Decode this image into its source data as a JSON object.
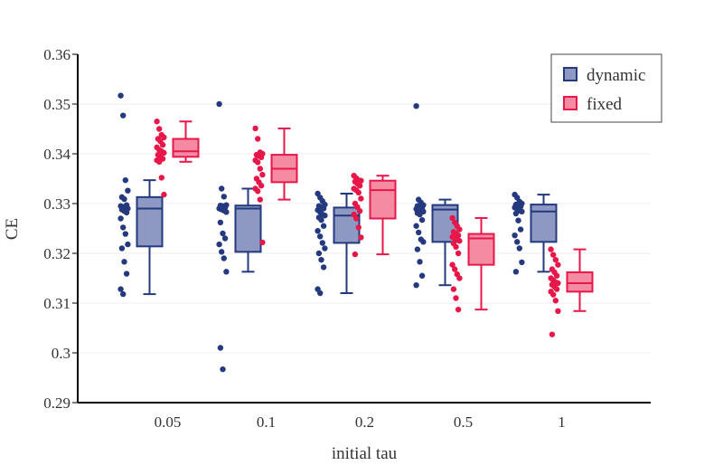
{
  "chart_data": {
    "type": "box",
    "title": "",
    "xlabel": "initial tau",
    "ylabel": "CE",
    "categories": [
      "0.05",
      "0.1",
      "0.2",
      "0.5",
      "1"
    ],
    "ylim": [
      0.29,
      0.36
    ],
    "yticks": [
      0.29,
      0.3,
      0.31,
      0.32,
      0.33,
      0.34,
      0.35,
      0.36
    ],
    "ytick_labels": [
      "0.29",
      "0.3",
      "0.31",
      "0.32",
      "0.33",
      "0.34",
      "0.35",
      "0.36"
    ],
    "grid": true,
    "legend_position": "top-right",
    "series": [
      {
        "name": "dynamic",
        "color": "#24397e",
        "fill": "#8d99c2",
        "boxes": [
          {
            "category": "0.05",
            "min": 0.3118,
            "q1": 0.3214,
            "median": 0.329,
            "q3": 0.3313,
            "max": 0.3347,
            "points": [
              0.3517,
              0.3477,
              0.3347,
              0.3326,
              0.3313,
              0.3309,
              0.3297,
              0.3295,
              0.3293,
              0.3291,
              0.329,
              0.3288,
              0.3285,
              0.3282,
              0.327,
              0.3252,
              0.3239,
              0.3218,
              0.321,
              0.3183,
              0.3159,
              0.3128,
              0.3118
            ]
          },
          {
            "category": "0.1",
            "min": 0.3163,
            "q1": 0.3203,
            "median": 0.329,
            "q3": 0.3296,
            "max": 0.333,
            "points": [
              0.35,
              0.333,
              0.3314,
              0.3297,
              0.3296,
              0.3295,
              0.3292,
              0.329,
              0.3288,
              0.3286,
              0.3283,
              0.3262,
              0.324,
              0.323,
              0.3218,
              0.3203,
              0.319,
              0.3163,
              0.301,
              0.2967
            ]
          },
          {
            "category": "0.2",
            "min": 0.312,
            "q1": 0.3221,
            "median": 0.3276,
            "q3": 0.3292,
            "max": 0.332,
            "points": [
              0.332,
              0.3312,
              0.3305,
              0.3298,
              0.3295,
              0.3293,
              0.329,
              0.3287,
              0.3283,
              0.3278,
              0.3276,
              0.3272,
              0.3267,
              0.3255,
              0.3245,
              0.3234,
              0.3221,
              0.321,
              0.32,
              0.3187,
              0.3172,
              0.3128,
              0.312
            ]
          },
          {
            "category": "0.5",
            "min": 0.3136,
            "q1": 0.3223,
            "median": 0.3288,
            "q3": 0.3297,
            "max": 0.3308,
            "points": [
              0.3496,
              0.3308,
              0.3302,
              0.3297,
              0.3295,
              0.3293,
              0.3291,
              0.3289,
              0.3288,
              0.3286,
              0.3284,
              0.3281,
              0.3278,
              0.3267,
              0.3255,
              0.3242,
              0.3228,
              0.3223,
              0.3208,
              0.3183,
              0.3155,
              0.3136
            ]
          },
          {
            "category": "1",
            "min": 0.3163,
            "q1": 0.3223,
            "median": 0.3284,
            "q3": 0.3298,
            "max": 0.3318,
            "points": [
              0.3318,
              0.3312,
              0.3304,
              0.33,
              0.3298,
              0.3296,
              0.3294,
              0.3292,
              0.3289,
              0.3286,
              0.3284,
              0.328,
              0.3266,
              0.3248,
              0.3236,
              0.3223,
              0.321,
              0.3182,
              0.3163
            ]
          }
        ]
      },
      {
        "name": "fixed",
        "color": "#e8174a",
        "fill": "#f58ba3",
        "boxes": [
          {
            "category": "0.05",
            "min": 0.3384,
            "q1": 0.3394,
            "median": 0.3405,
            "q3": 0.343,
            "max": 0.3465,
            "points": [
              0.3465,
              0.345,
              0.3438,
              0.3433,
              0.343,
              0.3425,
              0.3418,
              0.3413,
              0.3408,
              0.3405,
              0.3402,
              0.3398,
              0.3394,
              0.339,
              0.3387,
              0.3384,
              0.3352,
              0.3318
            ]
          },
          {
            "category": "0.1",
            "min": 0.3308,
            "q1": 0.3343,
            "median": 0.337,
            "q3": 0.3398,
            "max": 0.3451,
            "points": [
              0.3451,
              0.343,
              0.3403,
              0.34,
              0.3398,
              0.3396,
              0.3393,
              0.3387,
              0.3383,
              0.337,
              0.3358,
              0.335,
              0.3343,
              0.3336,
              0.333,
              0.3325,
              0.3308,
              0.3222
            ]
          },
          {
            "category": "0.2",
            "min": 0.3198,
            "q1": 0.327,
            "median": 0.3327,
            "q3": 0.3346,
            "max": 0.3356,
            "points": [
              0.3356,
              0.3351,
              0.3347,
              0.3346,
              0.3344,
              0.334,
              0.3336,
              0.333,
              0.3327,
              0.3322,
              0.331,
              0.33,
              0.3293,
              0.3285,
              0.3278,
              0.327,
              0.3252,
              0.3232,
              0.3198
            ]
          },
          {
            "category": "0.5",
            "min": 0.3087,
            "q1": 0.3177,
            "median": 0.323,
            "q3": 0.3239,
            "max": 0.3271,
            "points": [
              0.3271,
              0.3262,
              0.3255,
              0.3248,
              0.3243,
              0.3239,
              0.3236,
              0.3233,
              0.323,
              0.3228,
              0.3225,
              0.322,
              0.3213,
              0.32,
              0.3177,
              0.3168,
              0.3158,
              0.315,
              0.3128,
              0.311,
              0.3087
            ]
          },
          {
            "category": "1",
            "min": 0.3084,
            "q1": 0.3123,
            "median": 0.314,
            "q3": 0.3162,
            "max": 0.3208,
            "points": [
              0.3208,
              0.3197,
              0.3187,
              0.3177,
              0.3168,
              0.3162,
              0.3155,
              0.315,
              0.3146,
              0.3142,
              0.314,
              0.3137,
              0.3133,
              0.3128,
              0.3123,
              0.3117,
              0.3105,
              0.3084,
              0.3037
            ]
          }
        ]
      }
    ]
  }
}
